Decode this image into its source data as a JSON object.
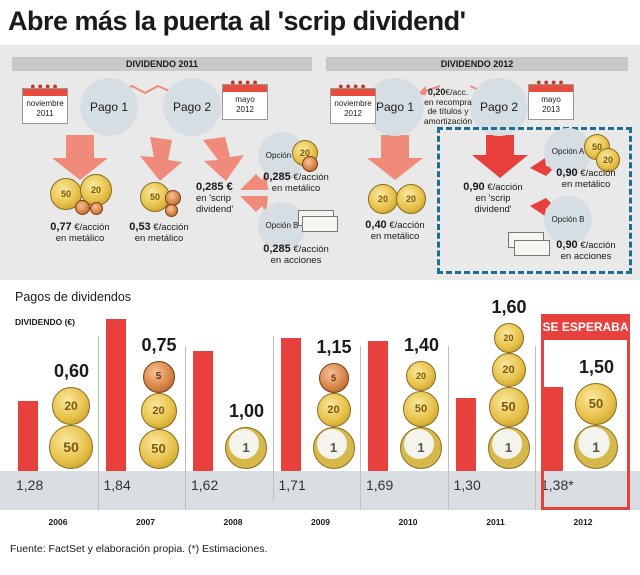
{
  "title": "Abre más la puerta al 'scrip dividend'",
  "top": {
    "left": {
      "header": "DIVIDENDO 2011",
      "pago1": "Pago 1",
      "pago2": "Pago 2",
      "cal1": [
        "noviembre",
        "2011"
      ],
      "cal2": [
        "mayo",
        "2012"
      ],
      "pago1_value": "0,77",
      "pago1_desc": [
        "€/acción",
        "en metálico"
      ],
      "pago2a_value": "0,53",
      "pago2a_desc": [
        "€/acción",
        "en metálico"
      ],
      "scrip_value": "0,285 €",
      "scrip_desc": [
        "en 'scrip",
        "dividend'"
      ],
      "opcion_a": "Opción A",
      "opcion_a_value": "0,285",
      "opcion_a_desc": [
        "€/acción",
        "en metálico"
      ],
      "opcion_b": "Opción B",
      "opcion_b_value": "0,285",
      "opcion_b_desc": [
        "€/acción",
        "en acciones"
      ]
    },
    "right": {
      "header": "DIVIDENDO 2012",
      "pago1": "Pago 1",
      "pago2": "Pago 2",
      "cal1": [
        "noviembre",
        "2012"
      ],
      "cal2": [
        "mayo",
        "2013"
      ],
      "note_value": "0,20",
      "note_desc": [
        "€/acc.",
        "en recompra",
        "de títulos y",
        "amortización"
      ],
      "pago1_value": "0,40",
      "pago1_desc": [
        "€/acción",
        "en metálico"
      ],
      "scrip_value": "0,90",
      "scrip_desc": [
        "€/acción",
        "en 'scrip",
        "dividend'"
      ],
      "opcion_a": "Opción A",
      "opcion_a_value": "0,90",
      "opcion_a_desc": [
        "€/acción",
        "en metálico"
      ],
      "opcion_b": "Opción B",
      "opcion_b_value": "0,90",
      "opcion_b_desc": [
        "€/acción",
        "en acciones"
      ]
    },
    "coins": {
      "c50": "50",
      "c20": "20",
      "c5": "5",
      "c1": "1"
    }
  },
  "chart_sub": "Pagos de dividendos",
  "expected_label": "SE ESPERABA",
  "footnote": "Fuente: FactSet y elaboración propia. (*) Estimaciones.",
  "colors": {
    "bar": "#e8403d",
    "band": "#d9dee2",
    "accent": "#1f6f93"
  },
  "chart_data": {
    "type": "bar",
    "ylabel": "DIVIDENDO (€)",
    "categories": [
      "2006",
      "2007",
      "2008",
      "2009",
      "2010",
      "2011",
      "2012"
    ],
    "series": [
      {
        "values": [
          1.28,
          1.84,
          1.62,
          1.71,
          1.69,
          1.3,
          1.38
        ]
      }
    ],
    "value_labels": [
      "1,28",
      "1,84",
      "1,62",
      "1,71",
      "1,69",
      "1,30",
      "1,38*"
    ],
    "dividends": [
      0.6,
      0.75,
      1.0,
      1.15,
      1.4,
      1.6,
      1.5
    ],
    "dividend_labels": [
      "0,60",
      "0,75",
      "1,00",
      "1,15",
      "1,40",
      "1,60",
      "1,50"
    ]
  }
}
